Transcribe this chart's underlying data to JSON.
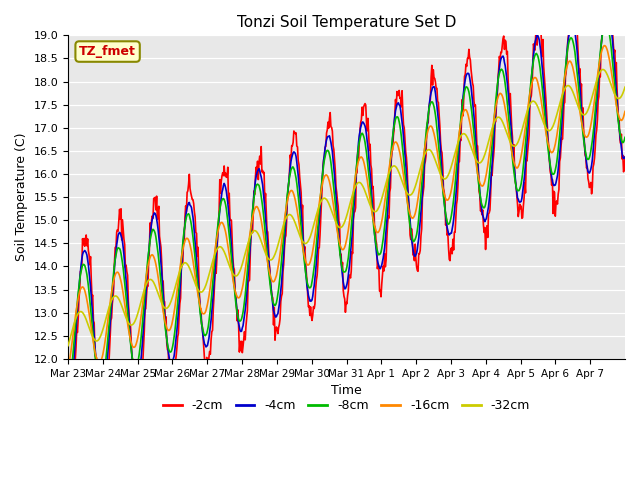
{
  "title": "Tonzi Soil Temperature Set D",
  "xlabel": "Time",
  "ylabel": "Soil Temperature (C)",
  "ylim": [
    12.0,
    19.0
  ],
  "yticks": [
    12.0,
    12.5,
    13.0,
    13.5,
    14.0,
    14.5,
    15.0,
    15.5,
    16.0,
    16.5,
    17.0,
    17.5,
    18.0,
    18.5,
    19.0
  ],
  "legend_label": "TZ_fmet",
  "series_labels": [
    "-2cm",
    "-4cm",
    "-8cm",
    "-16cm",
    "-32cm"
  ],
  "series_colors": [
    "#ff0000",
    "#0000cc",
    "#00bb00",
    "#ff8800",
    "#cccc00"
  ],
  "n_days": 16,
  "x_tick_labels": [
    "Mar 23",
    "Mar 24",
    "Mar 25",
    "Mar 26",
    "Mar 27",
    "Mar 28",
    "Mar 29",
    "Mar 30",
    "Mar 31",
    "Apr 1",
    "Apr 2",
    "Apr 3",
    "Apr 4",
    "Apr 5",
    "Apr 6",
    "Apr 7"
  ]
}
